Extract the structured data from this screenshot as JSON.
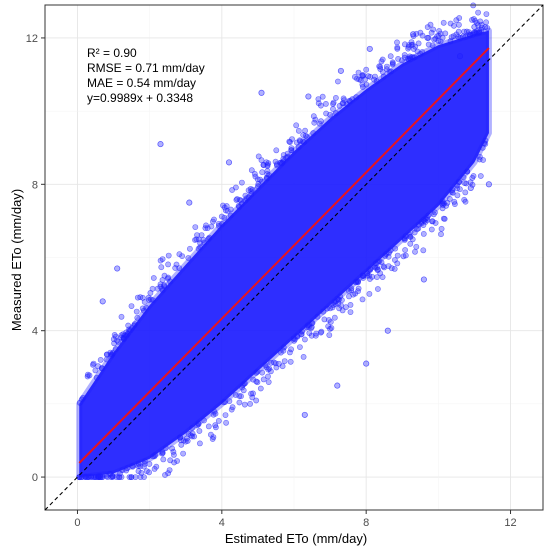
{
  "chart_data": {
    "type": "scatter",
    "xlabel": "Estimated ETo (mm/day)",
    "ylabel": "Measured ETo (mm/day)",
    "xlim": [
      -0.9,
      12.9
    ],
    "ylim": [
      -0.9,
      12.9
    ],
    "x_ticks": [
      0,
      4,
      8,
      12
    ],
    "y_ticks": [
      0,
      4,
      8,
      12
    ],
    "grid": true,
    "point_color": "#1f1fff",
    "annotations": [
      "R² = 0.90",
      "RMSE = 0.71 mm/day",
      "MAE = 0.54 mm/day",
      "y=0.9989x + 0.3348"
    ],
    "one_to_one_line": {
      "style": "dashed",
      "color": "#000000"
    },
    "regression_line": {
      "slope": 0.9989,
      "intercept": 0.3348,
      "x_range": [
        0.05,
        11.4
      ],
      "color": "#e8141e"
    },
    "cloud_envelope": {
      "x": [
        0.05,
        1,
        2,
        3,
        4,
        5,
        6,
        7,
        8,
        9,
        10,
        11,
        11.4
      ],
      "lower": [
        0.0,
        0.1,
        0.5,
        1.2,
        2.0,
        2.9,
        3.8,
        4.7,
        5.6,
        6.5,
        7.4,
        8.6,
        9.4
      ],
      "upper": [
        2.0,
        3.4,
        4.7,
        5.8,
        6.9,
        7.9,
        8.9,
        9.8,
        10.6,
        11.3,
        11.8,
        12.1,
        12.2
      ]
    },
    "points": [
      {
        "x": 2.3,
        "y": 9.1
      },
      {
        "x": 5.1,
        "y": 10.5
      },
      {
        "x": 11.4,
        "y": 8.0
      },
      {
        "x": 9.3,
        "y": 12.1
      },
      {
        "x": 11.0,
        "y": 12.3
      },
      {
        "x": 9.7,
        "y": 12.0
      },
      {
        "x": 8.1,
        "y": 11.7
      },
      {
        "x": 10.6,
        "y": 11.5
      },
      {
        "x": 1.1,
        "y": 5.7
      },
      {
        "x": 0.7,
        "y": 4.8
      },
      {
        "x": 10.9,
        "y": 7.9
      },
      {
        "x": 7.2,
        "y": 2.5
      },
      {
        "x": 8.6,
        "y": 4.0
      },
      {
        "x": 9.6,
        "y": 5.4
      },
      {
        "x": 6.3,
        "y": 1.7
      },
      {
        "x": 8.0,
        "y": 3.1
      },
      {
        "x": 3.1,
        "y": 7.5
      },
      {
        "x": 4.2,
        "y": 8.6
      },
      {
        "x": 6.4,
        "y": 10.4
      },
      {
        "x": 7.3,
        "y": 11.1
      }
    ]
  }
}
